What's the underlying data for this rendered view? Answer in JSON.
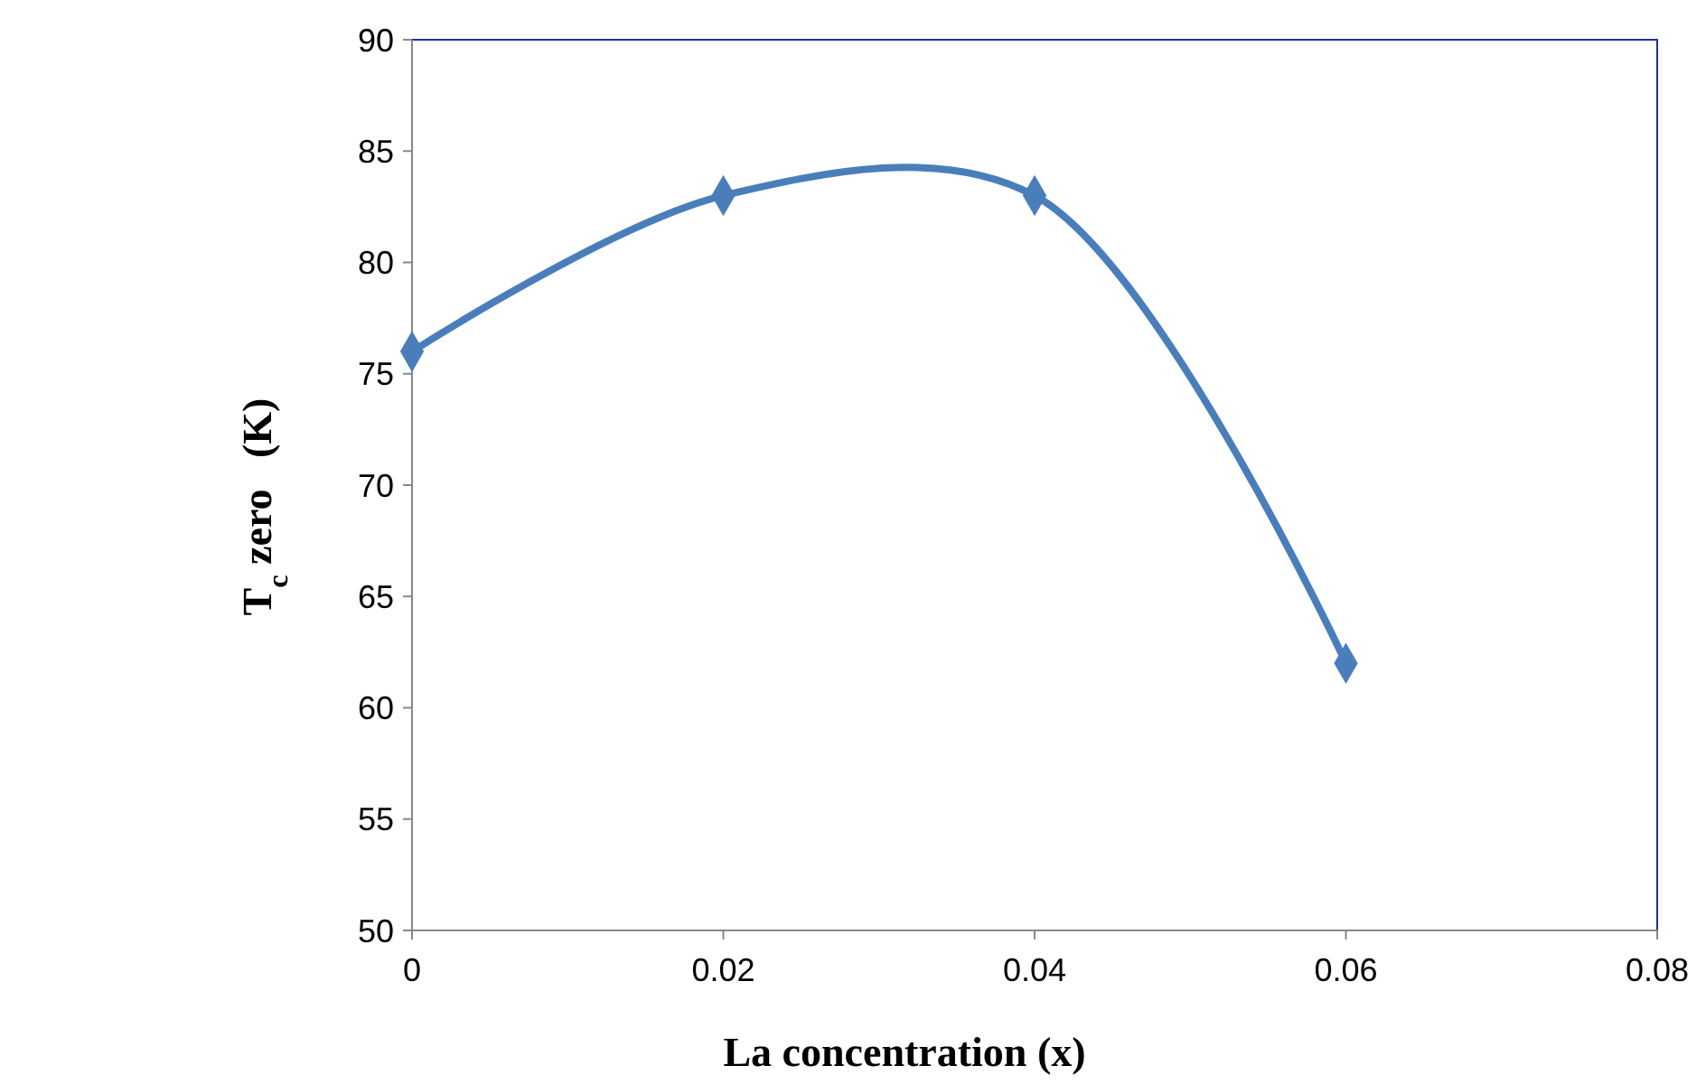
{
  "chart_data": {
    "type": "line",
    "xlabel": "La concentration (x)",
    "ylabel": "T$_{c}$ zero   (K)",
    "x": [
      0,
      0.02,
      0.04,
      0.06
    ],
    "series": [
      {
        "color": "#4a7ebb",
        "values": [
          76,
          83,
          83,
          62
        ]
      }
    ],
    "xlim": [
      0,
      0.08
    ],
    "xticks": [
      0,
      0.02,
      0.04,
      0.06,
      0.08
    ],
    "ylim": [
      50,
      90
    ],
    "yticks": [
      50,
      55,
      60,
      65,
      70,
      75,
      80,
      85,
      90
    ],
    "grid": false,
    "marker": "diamond",
    "line_style": "solid"
  }
}
